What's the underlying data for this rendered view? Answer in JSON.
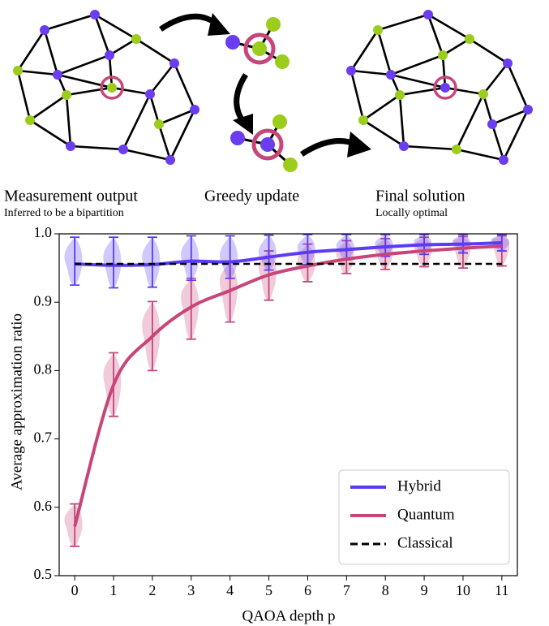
{
  "stages": [
    {
      "title": "Measurement output",
      "subtitle": "Inferred to be a bipartition"
    },
    {
      "title": "Greedy update"
    },
    {
      "title": "Final solution",
      "subtitle": "Locally optimal"
    }
  ],
  "chart_data": {
    "type": "violin-line",
    "xlabel": "QAOA depth p",
    "ylabel": "Average approximation ratio",
    "x": [
      0,
      1,
      2,
      3,
      4,
      5,
      6,
      7,
      8,
      9,
      10,
      11
    ],
    "xlim": [
      -0.4,
      11.4
    ],
    "xticks": [
      0,
      1,
      2,
      3,
      4,
      5,
      6,
      7,
      8,
      9,
      10,
      11
    ],
    "ylim": [
      0.5,
      1.0
    ],
    "yticks": [
      0.5,
      0.6,
      0.7,
      0.8,
      0.9,
      {
        "value": 1,
        "label": "1.0"
      }
    ],
    "legend": "lower right",
    "series": [
      {
        "name": "Hybrid",
        "color": "#5b3bf5",
        "values": [
          0.956,
          0.954,
          0.955,
          0.96,
          0.959,
          0.966,
          0.973,
          0.977,
          0.981,
          0.984,
          0.985,
          0.987
        ],
        "min": [
          0.925,
          0.921,
          0.922,
          0.932,
          0.935,
          0.947,
          0.955,
          0.962,
          0.967,
          0.97,
          0.972,
          0.975
        ],
        "max": [
          0.995,
          0.995,
          0.995,
          0.997,
          0.997,
          0.998,
          0.999,
          0.999,
          0.999,
          0.999,
          0.999,
          0.999
        ]
      },
      {
        "name": "Quantum",
        "color": "#c8457a",
        "values": [
          0.572,
          0.779,
          0.85,
          0.893,
          0.917,
          0.94,
          0.953,
          0.963,
          0.97,
          0.975,
          0.979,
          0.982
        ],
        "min": [
          0.543,
          0.733,
          0.8,
          0.846,
          0.871,
          0.903,
          0.93,
          0.942,
          0.948,
          0.952,
          0.95,
          0.953
        ],
        "max": [
          0.605,
          0.826,
          0.901,
          0.935,
          0.958,
          0.975,
          0.985,
          0.99,
          0.993,
          0.995,
          0.996,
          0.997
        ]
      }
    ],
    "reference_line": {
      "name": "Classical",
      "color": "#000000",
      "value": 0.956
    }
  }
}
